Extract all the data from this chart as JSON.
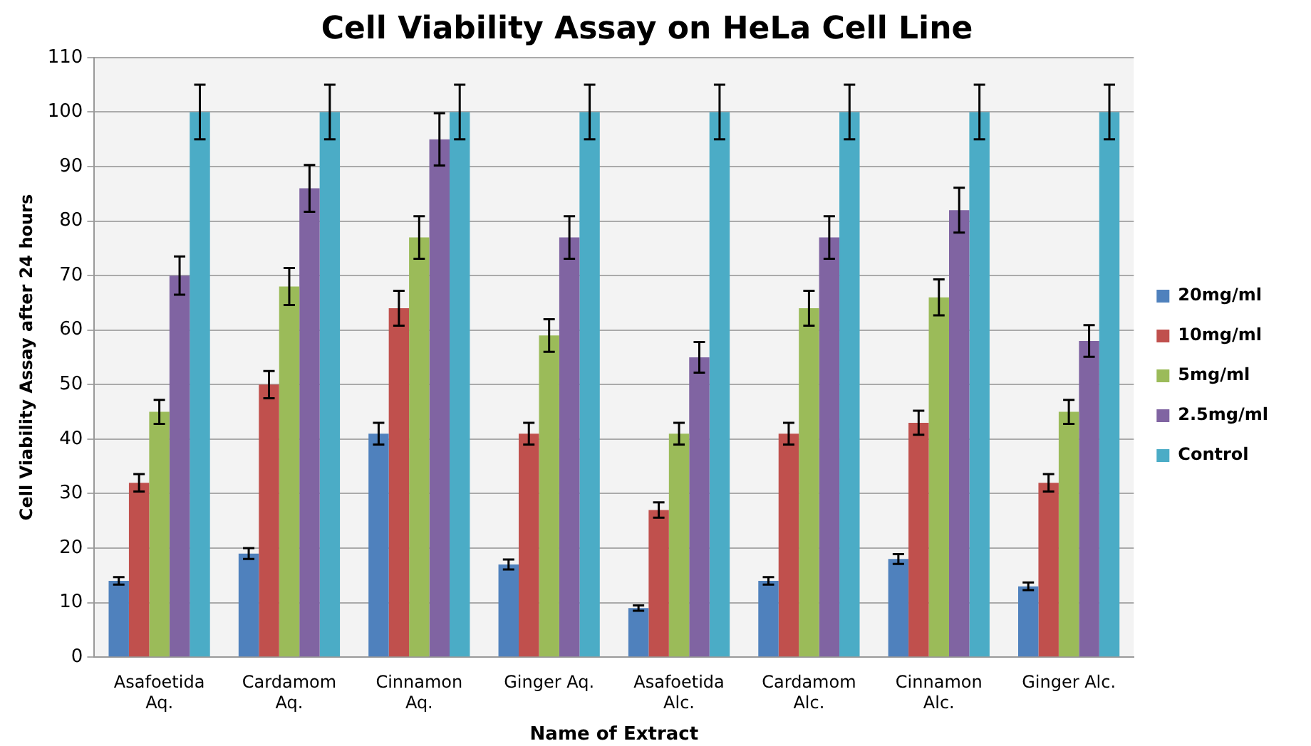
{
  "chart_data": {
    "type": "bar",
    "title": "Cell Viability Assay on HeLa Cell Line",
    "xlabel": "Name of Extract",
    "ylabel": "Cell Viability Assay after 24 hours",
    "categories": [
      "Asafoetida Aq.",
      "Cardamom Aq.",
      "Cinnamon Aq.",
      "Ginger Aq.",
      "Asafoetida Alc.",
      "Cardamom Alc.",
      "Cinnamon Alc.",
      "Ginger Alc."
    ],
    "series": [
      {
        "name": "20mg/ml",
        "color": "#4f81bd",
        "values": [
          14,
          19,
          41,
          17,
          9,
          14,
          18,
          13
        ],
        "errors": [
          0.7,
          1,
          2,
          0.9,
          0.5,
          0.7,
          0.9,
          0.7
        ]
      },
      {
        "name": "10mg/ml",
        "color": "#c0504d",
        "values": [
          32,
          50,
          64,
          41,
          27,
          41,
          43,
          32
        ],
        "errors": [
          1.6,
          2.5,
          3.2,
          2,
          1.4,
          2,
          2.2,
          1.6
        ]
      },
      {
        "name": "5mg/ml",
        "color": "#9bbb59",
        "values": [
          45,
          68,
          77,
          59,
          41,
          64,
          66,
          45
        ],
        "errors": [
          2.2,
          3.4,
          3.9,
          3,
          2,
          3.2,
          3.3,
          2.2
        ]
      },
      {
        "name": "2.5mg/ml",
        "color": "#8064a2",
        "values": [
          70,
          86,
          95,
          77,
          55,
          77,
          82,
          58
        ],
        "errors": [
          3.5,
          4.3,
          4.8,
          3.9,
          2.8,
          3.9,
          4.1,
          2.9
        ]
      },
      {
        "name": "Control",
        "color": "#4bacc6",
        "values": [
          100,
          100,
          100,
          100,
          100,
          100,
          100,
          100
        ],
        "errors": [
          5,
          5,
          5,
          5,
          5,
          5,
          5,
          5
        ]
      }
    ],
    "ylim": [
      0,
      110
    ],
    "yticks": [
      0,
      10,
      20,
      30,
      40,
      50,
      60,
      70,
      80,
      90,
      100,
      110
    ],
    "grid": "y",
    "legend": "right"
  }
}
